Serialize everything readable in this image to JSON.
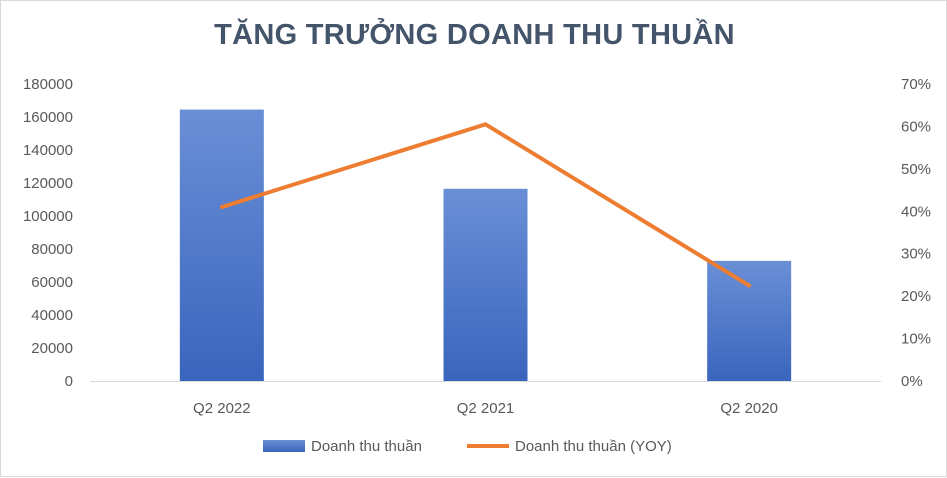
{
  "chart_data": {
    "type": "bar",
    "title": "TĂNG TRƯỞNG DOANH THU THUẦN",
    "categories": [
      "Q2 2022",
      "Q2 2021",
      "Q2 2020"
    ],
    "series": [
      {
        "name": "Doanh thu thuần",
        "type": "bar",
        "axis": "left",
        "color": "#4472c4",
        "values": [
          164500,
          116500,
          72800
        ]
      },
      {
        "name": "Doanh thu thuần (YOY)",
        "type": "line",
        "axis": "right",
        "color": "#ed7d31",
        "values": [
          0.41,
          0.605,
          0.225
        ]
      }
    ],
    "y_left": {
      "min": 0,
      "max": 180000,
      "step": 20000,
      "tick_labels": [
        "0",
        "20000",
        "40000",
        "60000",
        "80000",
        "100000",
        "120000",
        "140000",
        "160000",
        "180000"
      ]
    },
    "y_right": {
      "min": 0,
      "max": 0.7,
      "step": 0.1,
      "tick_labels": [
        "0%",
        "10%",
        "20%",
        "30%",
        "40%",
        "50%",
        "60%",
        "70%"
      ]
    },
    "grid": false,
    "legend_position": "bottom"
  }
}
